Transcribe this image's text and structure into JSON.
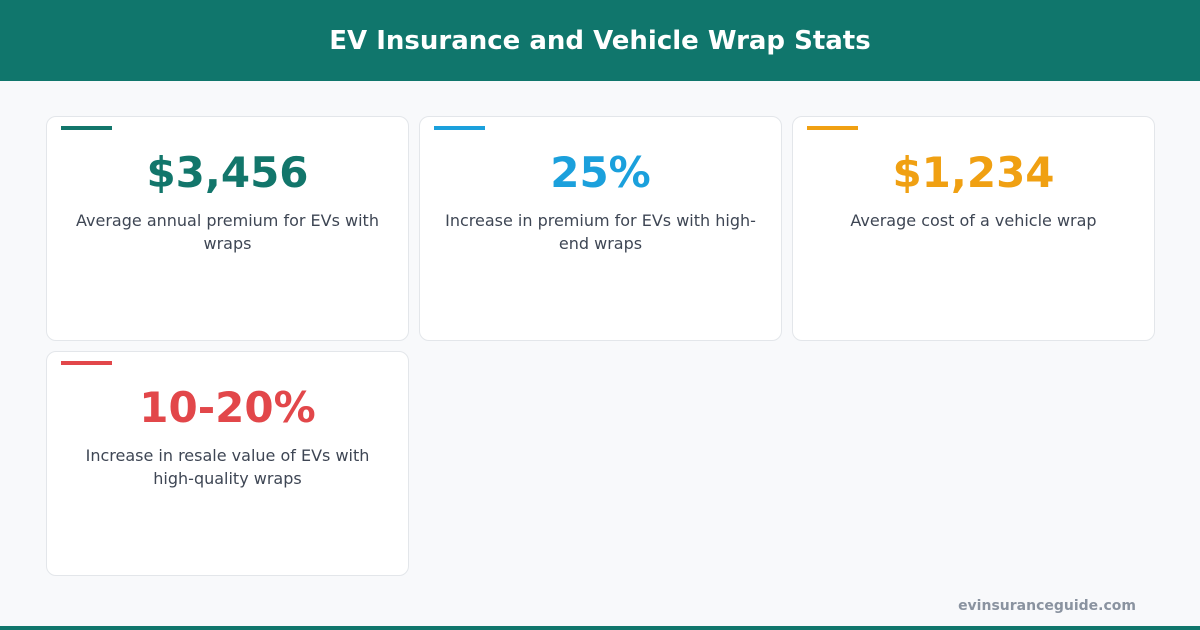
{
  "header": {
    "title": "EV Insurance and Vehicle Wrap Stats"
  },
  "cards": [
    {
      "value": "$3,456",
      "label": "Average annual premium for EVs with wraps",
      "color": "#12766b"
    },
    {
      "value": "25%",
      "label": "Increase in premium for EVs with high-end wraps",
      "color": "#1ba0dc"
    },
    {
      "value": "$1,234",
      "label": "Average cost of a vehicle wrap",
      "color": "#f0a012"
    },
    {
      "value": "10-20%",
      "label": "Increase in resale value of EVs with high-quality wraps",
      "color": "#e2474a"
    }
  ],
  "footer": {
    "site": "evinsuranceguide.com"
  }
}
